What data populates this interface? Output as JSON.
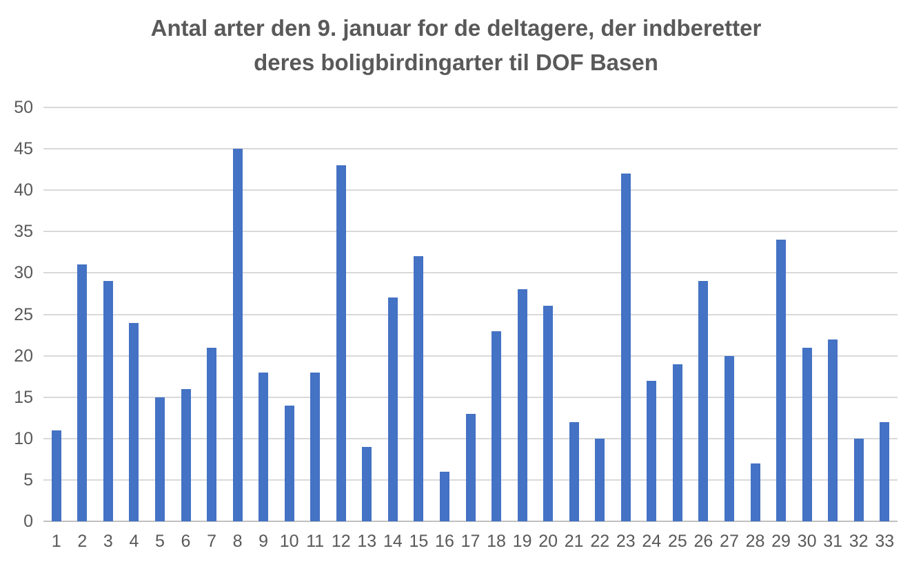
{
  "title": {
    "line1": "Antal arter den 9. januar for de deltagere, der indberetter",
    "line2": "deres boligbirdingarter til DOF Basen"
  },
  "chart_data": {
    "type": "bar",
    "title": "Antal arter den 9. januar for de deltagere, der indberetter deres boligbirdingarter til DOF Basen",
    "categories": [
      "1",
      "2",
      "3",
      "4",
      "5",
      "6",
      "7",
      "8",
      "9",
      "10",
      "11",
      "12",
      "13",
      "14",
      "15",
      "16",
      "17",
      "18",
      "19",
      "20",
      "21",
      "22",
      "23",
      "24",
      "25",
      "26",
      "27",
      "28",
      "29",
      "30",
      "31",
      "32",
      "33"
    ],
    "values": [
      11,
      31,
      29,
      24,
      15,
      16,
      21,
      45,
      18,
      14,
      18,
      43,
      9,
      27,
      32,
      6,
      13,
      23,
      28,
      26,
      12,
      10,
      42,
      17,
      19,
      29,
      20,
      7,
      34,
      21,
      22,
      10,
      12
    ],
    "xlabel": "",
    "ylabel": "",
    "ylim": [
      0,
      50
    ],
    "ytick_step": 5,
    "y_ticks": [
      0,
      5,
      10,
      15,
      20,
      25,
      30,
      35,
      40,
      45,
      50
    ],
    "grid": true,
    "legend": "none",
    "colors": {
      "bar": "#4472c4",
      "gridline": "#d9d9d9",
      "axis_line": "#bfbfbf",
      "axis_text": "#595959",
      "title_text": "#595959",
      "background": "#ffffff"
    }
  }
}
